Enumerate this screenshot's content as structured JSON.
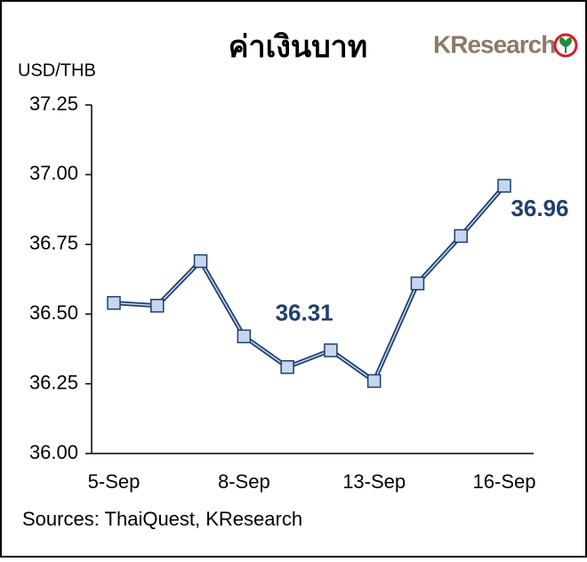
{
  "chart_data": {
    "type": "line",
    "title": "ค่าเงินบาท",
    "y_label": "USD/THB",
    "source": "Sources: ThaiQuest, KResearch",
    "logo": "KResearch",
    "categories": [
      "5-Sep",
      null,
      null,
      "8-Sep",
      null,
      null,
      "13-Sep",
      null,
      null,
      "16-Sep"
    ],
    "series": [
      {
        "name": "USD/THB",
        "color": "#1f3f6e",
        "marker_color": "#c6d6ef",
        "values": [
          36.54,
          36.53,
          36.69,
          36.42,
          36.31,
          36.37,
          36.26,
          36.61,
          36.78,
          36.96
        ],
        "value_labels": [
          null,
          null,
          null,
          null,
          "36.31",
          null,
          null,
          null,
          null,
          "36.96"
        ]
      }
    ],
    "ylim": [
      36.0,
      37.25
    ],
    "yticks": [
      {
        "value": 36,
        "label": "36.00"
      },
      36.25,
      {
        "value": 36.5,
        "label": "36.50"
      },
      36.75,
      {
        "value": 37,
        "label": "37.00"
      },
      37.25
    ]
  }
}
